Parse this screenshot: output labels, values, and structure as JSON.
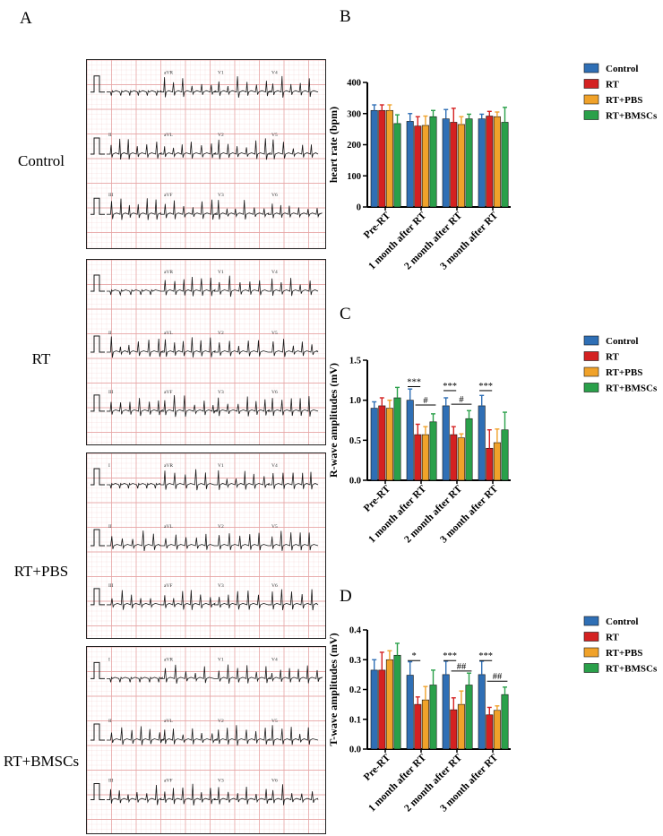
{
  "panel_letters": {
    "a": "A",
    "b": "B",
    "c": "C",
    "d": "D"
  },
  "ecg": {
    "groups": [
      "Control",
      "RT",
      "RT+PBS",
      "RT+BMSCs"
    ],
    "leads": {
      "control": [
        "aVR",
        "V1",
        "V4",
        "II",
        "aVL",
        "V2",
        "V5",
        "III",
        "aVF",
        "V3",
        "V6"
      ],
      "rt": [
        "aVR",
        "V1",
        "V4",
        "II",
        "aVL",
        "V2",
        "V5",
        "III",
        "aVF",
        "V3",
        "V6"
      ],
      "rtpbs": [
        "I",
        "aVR",
        "V1",
        "V4",
        "II",
        "aVL",
        "V2",
        "V5",
        "III",
        "aVF",
        "V3",
        "V6"
      ],
      "rtbmsc": [
        "I",
        "aVR",
        "V1",
        "V4",
        "II",
        "aVL",
        "V2",
        "V5",
        "III",
        "aVF",
        "V3",
        "V6"
      ]
    },
    "grid_color": "#e7a6a6",
    "trace_color": "#1a1a1a"
  },
  "legend": [
    "Control",
    "RT",
    "RT+PBS",
    "RT+BMSCs"
  ],
  "colors": {
    "Control": "#2f6fb5",
    "RT": "#d42121",
    "RT+PBS": "#f0a22a",
    "RT+BMSCs": "#2aa04a"
  },
  "chart_data": [
    {
      "type": "bar",
      "panel": "B",
      "categories": [
        "Pre-RT",
        "1 month after RT",
        "2 month after RT",
        "3 month after RT"
      ],
      "ylabel": "heart rate (bpm)",
      "ylim": [
        0,
        400
      ],
      "yticks": [
        "0",
        "100",
        "200",
        "300",
        "400"
      ],
      "series": [
        {
          "name": "Control",
          "values": [
            310,
            275,
            283,
            283
          ],
          "errors": [
            18,
            25,
            30,
            15
          ]
        },
        {
          "name": "RT",
          "values": [
            310,
            260,
            272,
            292
          ],
          "errors": [
            18,
            30,
            45,
            15
          ]
        },
        {
          "name": "RT+PBS",
          "values": [
            310,
            262,
            265,
            290
          ],
          "errors": [
            18,
            30,
            25,
            15
          ]
        },
        {
          "name": "RT+BMSCs",
          "values": [
            268,
            290,
            283,
            272
          ],
          "errors": [
            28,
            20,
            15,
            48
          ]
        }
      ],
      "annotations": []
    },
    {
      "type": "bar",
      "panel": "C",
      "categories": [
        "Pre-RT",
        "1 month after RT",
        "2 month after RT",
        "3 month after RT"
      ],
      "ylabel": "R-wave amplitudes (mV)",
      "ylim": [
        0,
        1.5
      ],
      "yticks": [
        "0.0",
        "0.5",
        "1.0",
        "1.5"
      ],
      "series": [
        {
          "name": "Control",
          "values": [
            0.9,
            1.0,
            0.93,
            0.93
          ],
          "errors": [
            0.08,
            0.14,
            0.1,
            0.13
          ]
        },
        {
          "name": "RT",
          "values": [
            0.93,
            0.57,
            0.57,
            0.4
          ],
          "errors": [
            0.1,
            0.13,
            0.1,
            0.23
          ]
        },
        {
          "name": "RT+PBS",
          "values": [
            0.9,
            0.57,
            0.53,
            0.47
          ],
          "errors": [
            0.1,
            0.1,
            0.05,
            0.17
          ]
        },
        {
          "name": "RT+BMSCs",
          "values": [
            1.03,
            0.73,
            0.77,
            0.63
          ],
          "errors": [
            0.13,
            0.1,
            0.1,
            0.22
          ]
        }
      ],
      "annotations": [
        {
          "text": "***",
          "group": 1,
          "from": 0,
          "to": 1,
          "y": 1.17
        },
        {
          "text": "#",
          "group": 1,
          "from": 1,
          "to": 3,
          "y": 0.94
        },
        {
          "text": "***",
          "group": 2,
          "from": 0,
          "to": 1,
          "y": 1.12
        },
        {
          "text": "#",
          "group": 2,
          "from": 1,
          "to": 3,
          "y": 0.95
        },
        {
          "text": "***",
          "group": 3,
          "from": 0,
          "to": 1,
          "y": 1.12
        }
      ]
    },
    {
      "type": "bar",
      "panel": "D",
      "categories": [
        "Pre-RT",
        "1 month after RT",
        "2 month after RT",
        "3 month after RT"
      ],
      "ylabel": "T-wave amplitudes (mV)",
      "ylim": [
        0,
        0.4
      ],
      "yticks": [
        "0.0",
        "0.1",
        "0.2",
        "0.3",
        "0.4"
      ],
      "series": [
        {
          "name": "Control",
          "values": [
            0.265,
            0.248,
            0.25,
            0.25
          ],
          "errors": [
            0.035,
            0.045,
            0.045,
            0.045
          ]
        },
        {
          "name": "RT",
          "values": [
            0.265,
            0.15,
            0.132,
            0.115
          ],
          "errors": [
            0.06,
            0.025,
            0.04,
            0.025
          ]
        },
        {
          "name": "RT+PBS",
          "values": [
            0.3,
            0.165,
            0.15,
            0.13
          ],
          "errors": [
            0.03,
            0.045,
            0.045,
            0.015
          ]
        },
        {
          "name": "RT+BMSCs",
          "values": [
            0.315,
            0.215,
            0.215,
            0.183
          ],
          "errors": [
            0.04,
            0.05,
            0.04,
            0.025
          ]
        }
      ],
      "annotations": [
        {
          "text": "*",
          "group": 1,
          "from": 0,
          "to": 1,
          "y": 0.297
        },
        {
          "text": "***",
          "group": 2,
          "from": 0,
          "to": 1,
          "y": 0.297
        },
        {
          "text": "##",
          "group": 2,
          "from": 1,
          "to": 3,
          "y": 0.262
        },
        {
          "text": "***",
          "group": 3,
          "from": 0,
          "to": 1,
          "y": 0.297
        },
        {
          "text": "##",
          "group": 3,
          "from": 1,
          "to": 3,
          "y": 0.228
        }
      ]
    }
  ]
}
